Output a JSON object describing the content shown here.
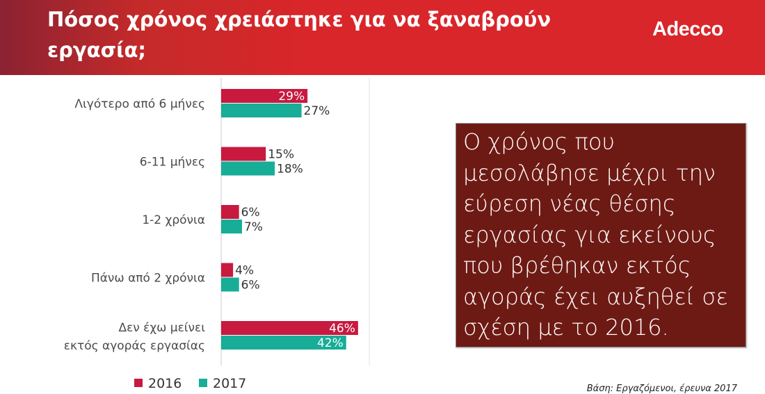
{
  "header": {
    "title": "Πόσος χρόνος χρειάστηκε για να ξαναβρούν εργασία;",
    "logo": "Adecco"
  },
  "callout": {
    "text": "Ο χρόνος που μεσολάβησε μέχρι την εύρεση νέας θέσης εργασίας για εκείνους που βρέθηκαν εκτός αγοράς έχει αυξηθεί σε σχέση με το 2016."
  },
  "source": "Βάση: Εργαζόμενοι, έρευνα 2017",
  "colors": {
    "s2016": "#c8193f",
    "s2017": "#17ad97",
    "callout_bg": "#6e1a14",
    "header": "#d9262a"
  },
  "chart_data": {
    "type": "bar",
    "orientation": "horizontal",
    "categories": [
      "Λιγότερο από 6 μήνες",
      "6-11 μήνες",
      "1-2 χρόνια",
      "Πάνω από 2 χρόνια",
      "Δεν έχω μείνει εκτός αγοράς εργασίας"
    ],
    "series": [
      {
        "name": "2016",
        "values": [
          29,
          15,
          6,
          4,
          46
        ],
        "labels": [
          "29%",
          "15%",
          "6%",
          "4%",
          "46%"
        ]
      },
      {
        "name": "2017",
        "values": [
          27,
          18,
          7,
          6,
          42
        ],
        "labels": [
          "27%",
          "18%",
          "7%",
          "6%",
          "42%"
        ]
      }
    ],
    "xlim": [
      0,
      50
    ],
    "unit": "%",
    "legend": "bottom"
  }
}
